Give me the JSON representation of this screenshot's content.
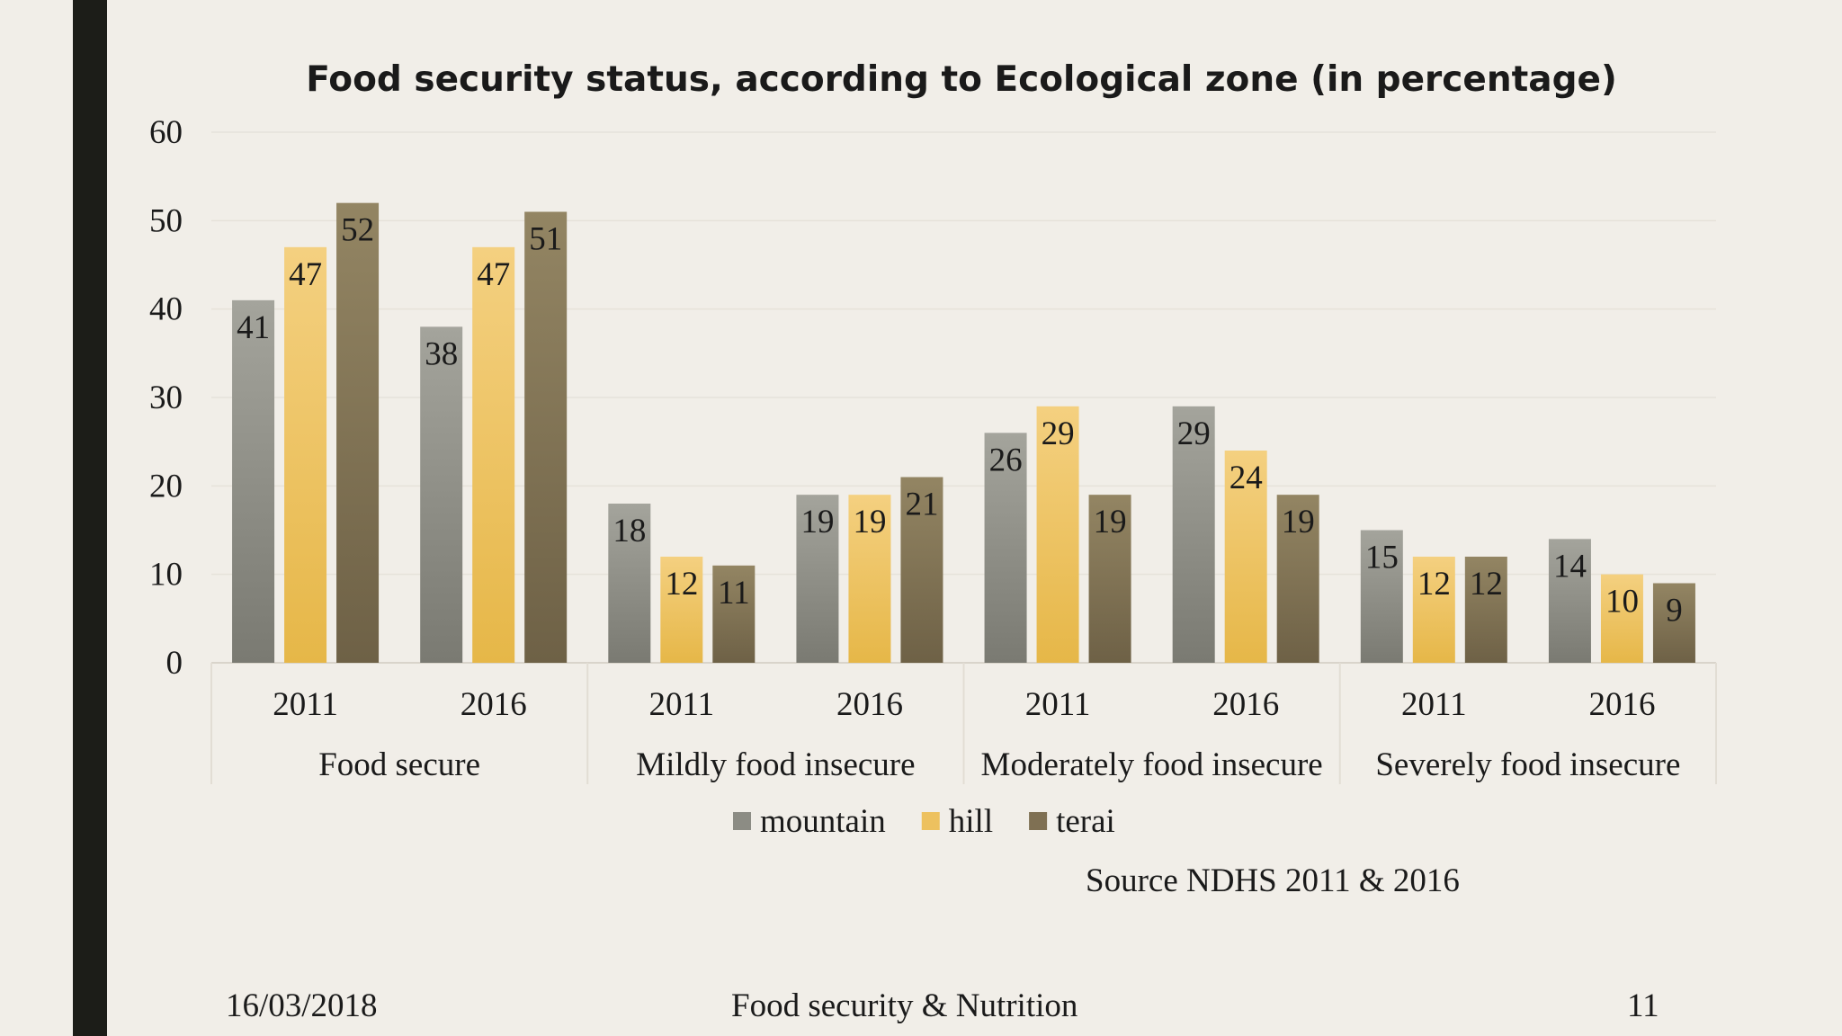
{
  "chart_data": {
    "type": "bar",
    "title": "Food security status, according to Ecological zone (in percentage)",
    "groups": [
      {
        "label": "Food secure",
        "categories": [
          "2011",
          "2016"
        ]
      },
      {
        "label": "Mildly food insecure",
        "categories": [
          "2011",
          "2016"
        ]
      },
      {
        "label": "Moderately food insecure",
        "categories": [
          "2011",
          "2016"
        ]
      },
      {
        "label": "Severely food insecure",
        "categories": [
          "2011",
          "2016"
        ]
      }
    ],
    "series": [
      {
        "name": "mountain",
        "color": "#8c8c84",
        "values": [
          41,
          38,
          18,
          19,
          26,
          29,
          15,
          14
        ]
      },
      {
        "name": "hill",
        "color": "#edc15f",
        "values": [
          47,
          47,
          12,
          19,
          29,
          24,
          12,
          10
        ]
      },
      {
        "name": "terai",
        "color": "#7f7053",
        "values": [
          52,
          51,
          11,
          21,
          19,
          19,
          12,
          9
        ]
      }
    ],
    "ylim": [
      0,
      60
    ],
    "yticks": [
      "0",
      "10",
      "20",
      "30",
      "40",
      "50",
      "60"
    ],
    "grid": true,
    "legend": "bottom",
    "source": "Source NDHS 2011 & 2016"
  },
  "footer": {
    "date": "16/03/2018",
    "title": "Food security & Nutrition",
    "page": "11"
  }
}
